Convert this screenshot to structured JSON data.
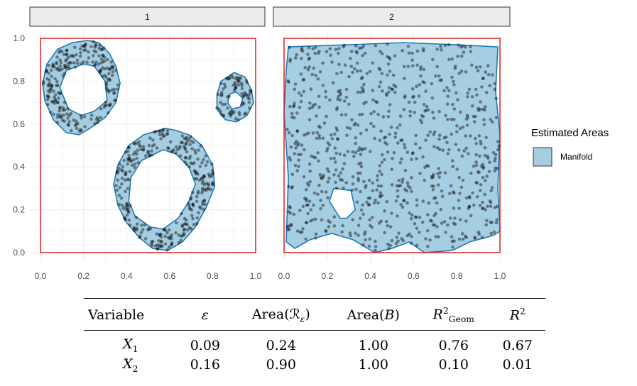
{
  "chart_data": {
    "type": "scatter",
    "facets": [
      {
        "strip_label": "1",
        "xlim": [
          0,
          1
        ],
        "ylim": [
          0,
          1
        ],
        "x_ticks": [
          "0.0",
          "0.2",
          "0.4",
          "0.6",
          "0.8",
          "1.0"
        ],
        "y_ticks": [
          "0.0",
          "0.2",
          "0.4",
          "0.6",
          "0.8",
          "1.0"
        ],
        "bounding_box": {
          "xmin": 0,
          "xmax": 1,
          "ymin": 0,
          "ymax": 1
        },
        "manifold_regions": [
          {
            "outer": [
              [
                0.22,
                0.99
              ],
              [
                0.27,
                0.98
              ],
              [
                0.32,
                0.93
              ],
              [
                0.35,
                0.87
              ],
              [
                0.37,
                0.79
              ],
              [
                0.35,
                0.7
              ],
              [
                0.3,
                0.63
              ],
              [
                0.23,
                0.58
              ],
              [
                0.18,
                0.55
              ],
              [
                0.12,
                0.56
              ],
              [
                0.06,
                0.62
              ],
              [
                0.02,
                0.71
              ],
              [
                0.01,
                0.79
              ],
              [
                0.03,
                0.88
              ],
              [
                0.08,
                0.95
              ],
              [
                0.15,
                0.98
              ]
            ],
            "hole": [
              [
                0.2,
                0.88
              ],
              [
                0.25,
                0.87
              ],
              [
                0.3,
                0.8
              ],
              [
                0.31,
                0.71
              ],
              [
                0.25,
                0.66
              ],
              [
                0.19,
                0.64
              ],
              [
                0.13,
                0.67
              ],
              [
                0.09,
                0.77
              ],
              [
                0.12,
                0.85
              ]
            ]
          },
          {
            "outer": [
              [
                0.58,
                0.58
              ],
              [
                0.63,
                0.57
              ],
              [
                0.69,
                0.55
              ],
              [
                0.75,
                0.5
              ],
              [
                0.8,
                0.41
              ],
              [
                0.81,
                0.31
              ],
              [
                0.77,
                0.21
              ],
              [
                0.72,
                0.12
              ],
              [
                0.66,
                0.05
              ],
              [
                0.59,
                0.01
              ],
              [
                0.52,
                0.02
              ],
              [
                0.46,
                0.07
              ],
              [
                0.4,
                0.14
              ],
              [
                0.36,
                0.22
              ],
              [
                0.34,
                0.32
              ],
              [
                0.36,
                0.41
              ],
              [
                0.41,
                0.5
              ],
              [
                0.48,
                0.55
              ]
            ],
            "hole": [
              [
                0.57,
                0.48
              ],
              [
                0.63,
                0.46
              ],
              [
                0.69,
                0.4
              ],
              [
                0.72,
                0.32
              ],
              [
                0.69,
                0.24
              ],
              [
                0.64,
                0.16
              ],
              [
                0.57,
                0.11
              ],
              [
                0.51,
                0.12
              ],
              [
                0.44,
                0.17
              ],
              [
                0.41,
                0.24
              ],
              [
                0.42,
                0.35
              ],
              [
                0.47,
                0.43
              ]
            ]
          },
          {
            "outer": [
              [
                0.9,
                0.84
              ],
              [
                0.95,
                0.82
              ],
              [
                0.98,
                0.76
              ],
              [
                0.99,
                0.7
              ],
              [
                0.96,
                0.64
              ],
              [
                0.91,
                0.61
              ],
              [
                0.86,
                0.62
              ],
              [
                0.82,
                0.67
              ],
              [
                0.82,
                0.74
              ],
              [
                0.84,
                0.8
              ]
            ],
            "hole": [
              [
                0.91,
                0.75
              ],
              [
                0.94,
                0.72
              ],
              [
                0.93,
                0.68
              ],
              [
                0.89,
                0.67
              ],
              [
                0.87,
                0.7
              ],
              [
                0.88,
                0.74
              ]
            ]
          }
        ]
      },
      {
        "strip_label": "2",
        "xlim": [
          0,
          1
        ],
        "ylim": [
          0,
          1
        ],
        "x_ticks": [
          "0.0",
          "0.2",
          "0.4",
          "0.6",
          "0.8",
          "1.0"
        ],
        "y_ticks": [
          "0.0",
          "0.2",
          "0.4",
          "0.6",
          "0.8",
          "1.0"
        ],
        "bounding_box": {
          "xmin": 0,
          "xmax": 1,
          "ymin": 0,
          "ymax": 1
        },
        "manifold_regions": [
          {
            "outer": [
              [
                0.02,
                0.96
              ],
              [
                0.3,
                0.97
              ],
              [
                0.55,
                0.98
              ],
              [
                0.8,
                0.97
              ],
              [
                0.99,
                0.96
              ],
              [
                0.98,
                0.75
              ],
              [
                1.0,
                0.55
              ],
              [
                0.99,
                0.3
              ],
              [
                1.0,
                0.1
              ],
              [
                0.97,
                0.08
              ],
              [
                0.86,
                0.05
              ],
              [
                0.78,
                0.01
              ],
              [
                0.65,
                0.0
              ],
              [
                0.58,
                0.05
              ],
              [
                0.5,
                0.02
              ],
              [
                0.42,
                0.0
              ],
              [
                0.32,
                0.06
              ],
              [
                0.22,
                0.09
              ],
              [
                0.12,
                0.06
              ],
              [
                0.05,
                0.02
              ],
              [
                0.01,
                0.05
              ],
              [
                0.02,
                0.35
              ],
              [
                0.0,
                0.65
              ],
              [
                0.01,
                0.85
              ]
            ],
            "hole": [
              [
                0.23,
                0.3
              ],
              [
                0.31,
                0.29
              ],
              [
                0.33,
                0.2
              ],
              [
                0.29,
                0.16
              ],
              [
                0.26,
                0.16
              ],
              [
                0.21,
                0.24
              ]
            ]
          }
        ]
      }
    ],
    "point_counts": [
      600,
      800
    ],
    "colors": {
      "frame": "#dd2020",
      "fill": "#a6cee3",
      "outline": "#1f78b4",
      "point": "#000000"
    },
    "legend": {
      "title": "Estimated Areas",
      "labels": [
        "Manifold"
      ],
      "position": "right"
    },
    "grid": true
  },
  "table": {
    "headers": [
      "Variable",
      "ε",
      "Area(ℛ",
      "ε",
      ")",
      "Area(",
      "B",
      ")",
      "R",
      "2",
      "Geom",
      "R",
      "2"
    ],
    "rows": [
      {
        "var": "X",
        "sub": "1",
        "values": [
          "0.09",
          "0.24",
          "1.00",
          "0.76",
          "0.67"
        ]
      },
      {
        "var": "X",
        "sub": "2",
        "values": [
          "0.16",
          "0.90",
          "1.00",
          "0.10",
          "0.01"
        ]
      }
    ]
  }
}
